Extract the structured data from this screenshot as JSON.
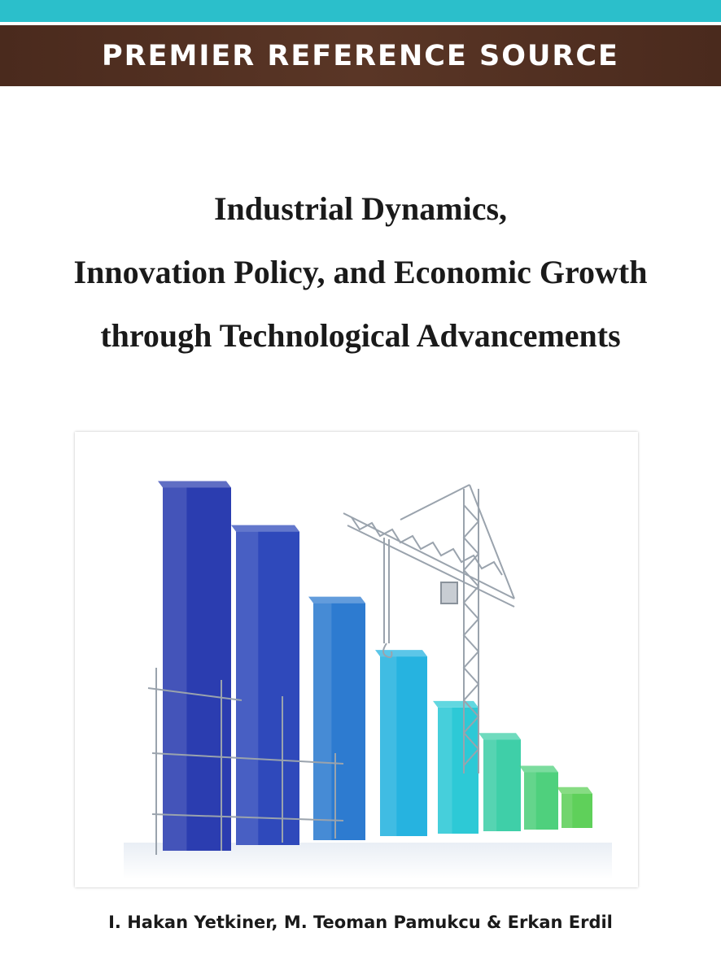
{
  "series_label": "PREMIER REFERENCE SOURCE",
  "title_lines": [
    "Industrial Dynamics,",
    "Innovation Policy, and Economic Growth",
    "through Technological Advancements"
  ],
  "authors": "I. Hakan Yetkiner, M. Teoman Pamukcu & Erkan Erdil",
  "colors": {
    "teal": "#2bbfcb",
    "brown_band": "#4a2a1d",
    "bars_gradient": [
      "#2b3db0",
      "#2f49bb",
      "#2d7bd0",
      "#26b3e0",
      "#2dc9d6",
      "#3fcfa8",
      "#4fd07d",
      "#5fd05a"
    ]
  },
  "cover_art": {
    "bar_levels": [
      0.95,
      0.82,
      0.62,
      0.47,
      0.33,
      0.24,
      0.15,
      0.09
    ]
  }
}
